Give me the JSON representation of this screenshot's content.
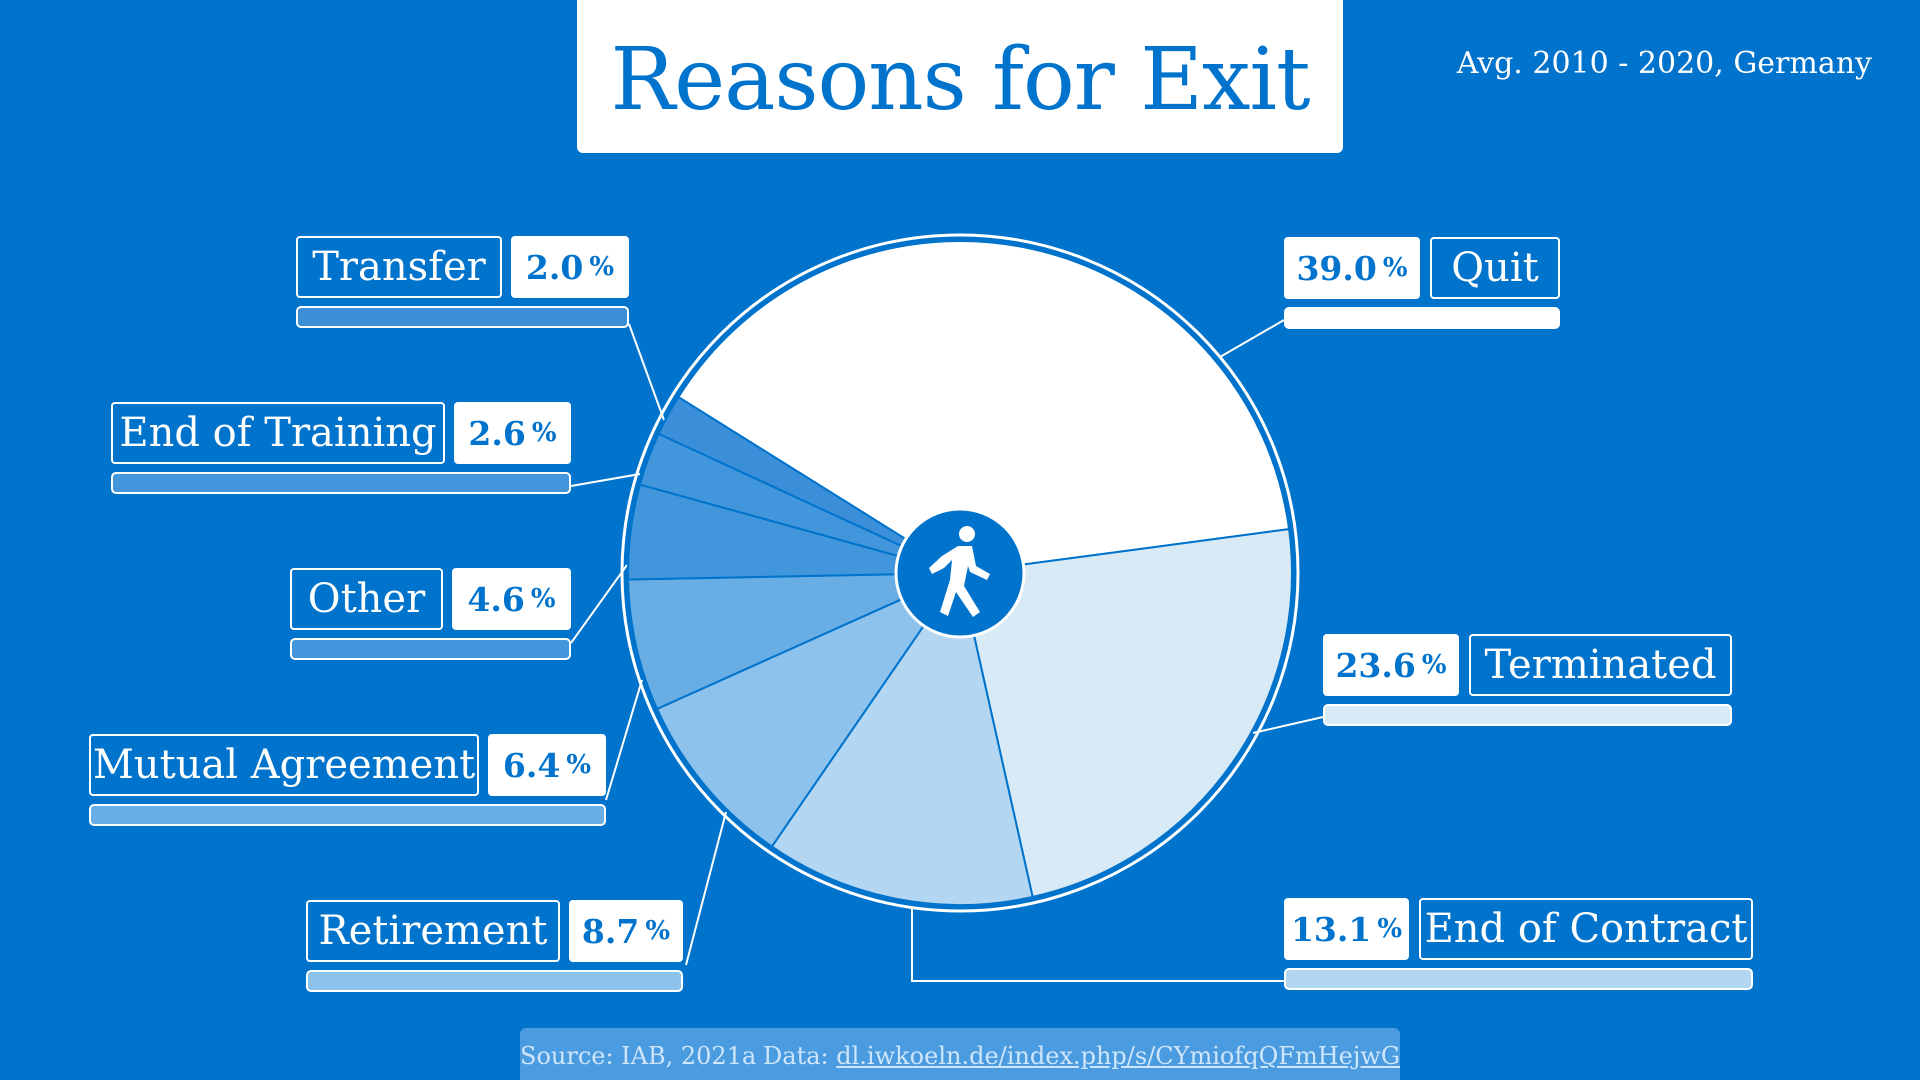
{
  "title": "Reasons for Exit",
  "subtitle": "Avg. 2010 - 2020, Germany",
  "footer": {
    "source": "Source: IAB, 2021a",
    "data_label": "Data:",
    "data_link": "dl.iwkoeln.de/index.php/s/CYmiofqQFmHejwG"
  },
  "center_icon": "walking-person-icon",
  "colors": {
    "background": "#0073CC",
    "quit": "#FFFFFF",
    "terminated": "#D9EAF7",
    "end_of_contract": "#B3D6F2",
    "retirement": "#8DC2EC",
    "mutual_agreement": "#68AEE5",
    "other": "#4297DC",
    "end_of_training": "#4297DC",
    "transfer": "#3B8FD8"
  },
  "chart_data": {
    "type": "pie",
    "title": "Reasons for Exit",
    "unit": "%",
    "slices": [
      {
        "name": "Quit",
        "value": 39.0,
        "label": "39.0"
      },
      {
        "name": "Terminated",
        "value": 23.6,
        "label": "23.6"
      },
      {
        "name": "End of Contract",
        "value": 13.1,
        "label": "13.1"
      },
      {
        "name": "Retirement",
        "value": 8.7,
        "label": "8.7"
      },
      {
        "name": "Mutual Agreement",
        "value": 6.4,
        "label": "6.4"
      },
      {
        "name": "Other",
        "value": 4.6,
        "label": "4.6"
      },
      {
        "name": "End of Training",
        "value": 2.6,
        "label": "2.6"
      },
      {
        "name": "Transfer",
        "value": 2.0,
        "label": "2.0"
      }
    ]
  }
}
